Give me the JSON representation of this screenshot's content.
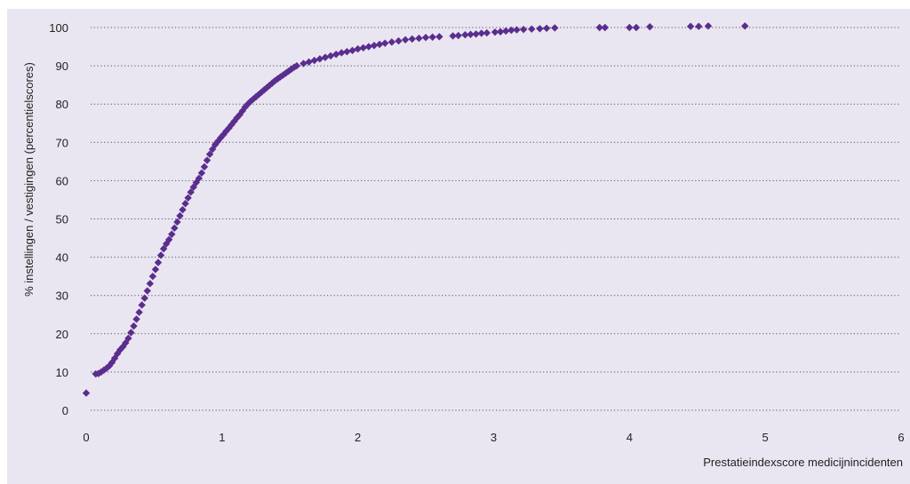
{
  "header": {
    "text": ""
  },
  "colors": {
    "marker": "#5b2d8e",
    "panel": "#e9e6f1",
    "grid": "#555555"
  },
  "chart_data": {
    "type": "scatter",
    "xlabel": "Prestatieindexscore medicijnincidenten",
    "ylabel": "% instellingen / vestigingen (percentielscores)",
    "xlim": [
      0,
      6
    ],
    "ylim": [
      0,
      100
    ],
    "xticks": [
      "0",
      "1",
      "2",
      "3",
      "4",
      "5",
      "6"
    ],
    "yticks": [
      "0",
      "10",
      "20",
      "30",
      "40",
      "50",
      "60",
      "70",
      "80",
      "90",
      "100"
    ],
    "grid": "horizontal-dotted",
    "legend": "none",
    "marker": "diamond",
    "points": [
      [
        0.0,
        4.5
      ],
      [
        0.07,
        9.5
      ],
      [
        0.09,
        9.6
      ],
      [
        0.11,
        10.0
      ],
      [
        0.13,
        10.5
      ],
      [
        0.15,
        11.0
      ],
      [
        0.17,
        11.6
      ],
      [
        0.19,
        12.5
      ],
      [
        0.21,
        13.6
      ],
      [
        0.23,
        14.8
      ],
      [
        0.25,
        15.8
      ],
      [
        0.27,
        16.6
      ],
      [
        0.29,
        17.6
      ],
      [
        0.31,
        18.8
      ],
      [
        0.33,
        20.3
      ],
      [
        0.35,
        22.0
      ],
      [
        0.37,
        23.8
      ],
      [
        0.39,
        25.6
      ],
      [
        0.41,
        27.5
      ],
      [
        0.43,
        29.3
      ],
      [
        0.45,
        31.2
      ],
      [
        0.47,
        33.1
      ],
      [
        0.49,
        35.0
      ],
      [
        0.51,
        36.8
      ],
      [
        0.53,
        38.6
      ],
      [
        0.55,
        40.5
      ],
      [
        0.57,
        42.2
      ],
      [
        0.59,
        43.5
      ],
      [
        0.61,
        44.6
      ],
      [
        0.63,
        46.0
      ],
      [
        0.65,
        47.6
      ],
      [
        0.67,
        49.2
      ],
      [
        0.69,
        50.8
      ],
      [
        0.71,
        52.4
      ],
      [
        0.73,
        54.0
      ],
      [
        0.75,
        55.5
      ],
      [
        0.77,
        57.0
      ],
      [
        0.79,
        58.3
      ],
      [
        0.81,
        59.5
      ],
      [
        0.83,
        60.6
      ],
      [
        0.85,
        62.0
      ],
      [
        0.87,
        63.6
      ],
      [
        0.89,
        65.3
      ],
      [
        0.91,
        66.9
      ],
      [
        0.93,
        68.2
      ],
      [
        0.95,
        69.4
      ],
      [
        0.97,
        70.3
      ],
      [
        0.99,
        71.2
      ],
      [
        1.01,
        72.0
      ],
      [
        1.03,
        72.9
      ],
      [
        1.05,
        73.7
      ],
      [
        1.07,
        74.6
      ],
      [
        1.09,
        75.5
      ],
      [
        1.11,
        76.4
      ],
      [
        1.13,
        77.2
      ],
      [
        1.15,
        78.2
      ],
      [
        1.17,
        79.2
      ],
      [
        1.19,
        80.0
      ],
      [
        1.21,
        80.7
      ],
      [
        1.23,
        81.3
      ],
      [
        1.25,
        81.9
      ],
      [
        1.27,
        82.5
      ],
      [
        1.29,
        83.1
      ],
      [
        1.31,
        83.7
      ],
      [
        1.33,
        84.3
      ],
      [
        1.35,
        84.9
      ],
      [
        1.37,
        85.5
      ],
      [
        1.39,
        86.1
      ],
      [
        1.41,
        86.6
      ],
      [
        1.43,
        87.1
      ],
      [
        1.45,
        87.6
      ],
      [
        1.47,
        88.1
      ],
      [
        1.49,
        88.6
      ],
      [
        1.51,
        89.1
      ],
      [
        1.53,
        89.6
      ],
      [
        1.55,
        90.0
      ],
      [
        1.6,
        90.6
      ],
      [
        1.64,
        91.0
      ],
      [
        1.68,
        91.4
      ],
      [
        1.72,
        91.8
      ],
      [
        1.76,
        92.2
      ],
      [
        1.8,
        92.6
      ],
      [
        1.84,
        93.0
      ],
      [
        1.88,
        93.4
      ],
      [
        1.92,
        93.7
      ],
      [
        1.96,
        94.0
      ],
      [
        2.0,
        94.4
      ],
      [
        2.04,
        94.7
      ],
      [
        2.08,
        95.0
      ],
      [
        2.12,
        95.3
      ],
      [
        2.16,
        95.6
      ],
      [
        2.2,
        95.9
      ],
      [
        2.25,
        96.2
      ],
      [
        2.3,
        96.5
      ],
      [
        2.35,
        96.8
      ],
      [
        2.4,
        97.0
      ],
      [
        2.45,
        97.2
      ],
      [
        2.5,
        97.4
      ],
      [
        2.55,
        97.5
      ],
      [
        2.6,
        97.6
      ],
      [
        2.7,
        97.8
      ],
      [
        2.74,
        97.9
      ],
      [
        2.79,
        98.1
      ],
      [
        2.83,
        98.2
      ],
      [
        2.87,
        98.3
      ],
      [
        2.91,
        98.5
      ],
      [
        2.95,
        98.6
      ],
      [
        3.01,
        98.8
      ],
      [
        3.05,
        98.9
      ],
      [
        3.09,
        99.1
      ],
      [
        3.13,
        99.3
      ],
      [
        3.17,
        99.4
      ],
      [
        3.22,
        99.5
      ],
      [
        3.28,
        99.6
      ],
      [
        3.34,
        99.7
      ],
      [
        3.39,
        99.8
      ],
      [
        3.45,
        99.9
      ],
      [
        3.78,
        100.0
      ],
      [
        3.82,
        100.0
      ],
      [
        4.0,
        100.0
      ],
      [
        4.05,
        100.0
      ],
      [
        4.15,
        100.2
      ],
      [
        4.45,
        100.3
      ],
      [
        4.51,
        100.3
      ],
      [
        4.58,
        100.4
      ],
      [
        4.85,
        100.4
      ]
    ]
  }
}
